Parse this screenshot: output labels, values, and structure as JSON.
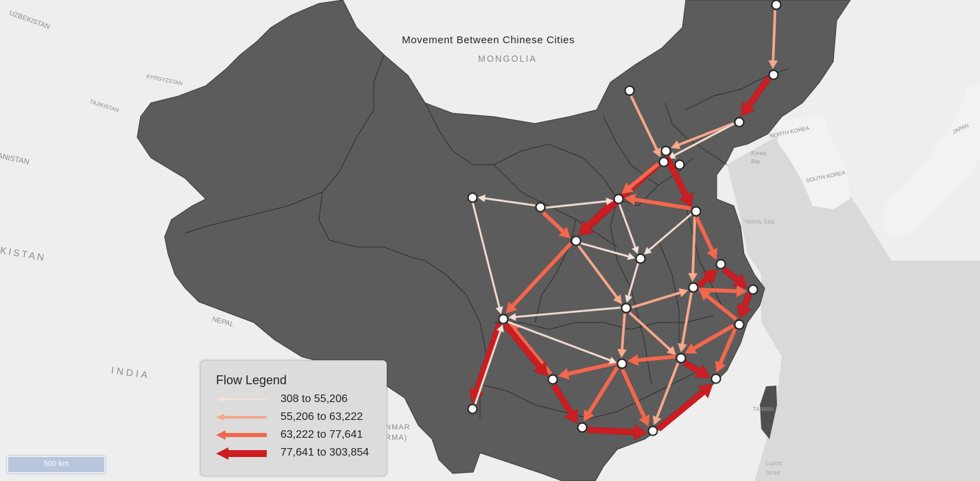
{
  "title": "Movement Between Chinese Cities",
  "basemap_labels": [
    {
      "text": "UZBEKISTAN"
    },
    {
      "text": "KYRGYZSTAN"
    },
    {
      "text": "TAJIKISTAN"
    },
    {
      "text": "ANISTAN"
    },
    {
      "text": "KISTAN"
    },
    {
      "text": "MONGOLIA"
    },
    {
      "text": "NORTH KOREA"
    },
    {
      "text": "SOUTH KOREA"
    },
    {
      "text": "JAPAN"
    },
    {
      "text": "Yellow Sea"
    },
    {
      "text": "NEPAL"
    },
    {
      "text": "INDIA"
    },
    {
      "text": "TAIWAN"
    },
    {
      "text": "Luzon Strait"
    },
    {
      "text": "Korea Bay"
    },
    {
      "text": "NMAR"
    },
    {
      "text": "RMA)"
    }
  ],
  "legend": {
    "title": "Flow Legend",
    "classes": [
      {
        "label": "308 to 55,206",
        "color": "#f5e1d6"
      },
      {
        "label": "55,206 to 63,222",
        "color": "#f6a98b"
      },
      {
        "label": "63,222 to 77,641",
        "color": "#f0684f"
      },
      {
        "label": "77,641 to 303,854",
        "color": "#cc1d22"
      }
    ]
  },
  "scale_bar": {
    "label": "500  km"
  },
  "colors": {
    "land_china": "#5c5c5c",
    "land_other": "#f2f2f2",
    "water": "#d8d8d8",
    "node_fill": "#ffffff",
    "node_stroke": "#222222"
  }
}
